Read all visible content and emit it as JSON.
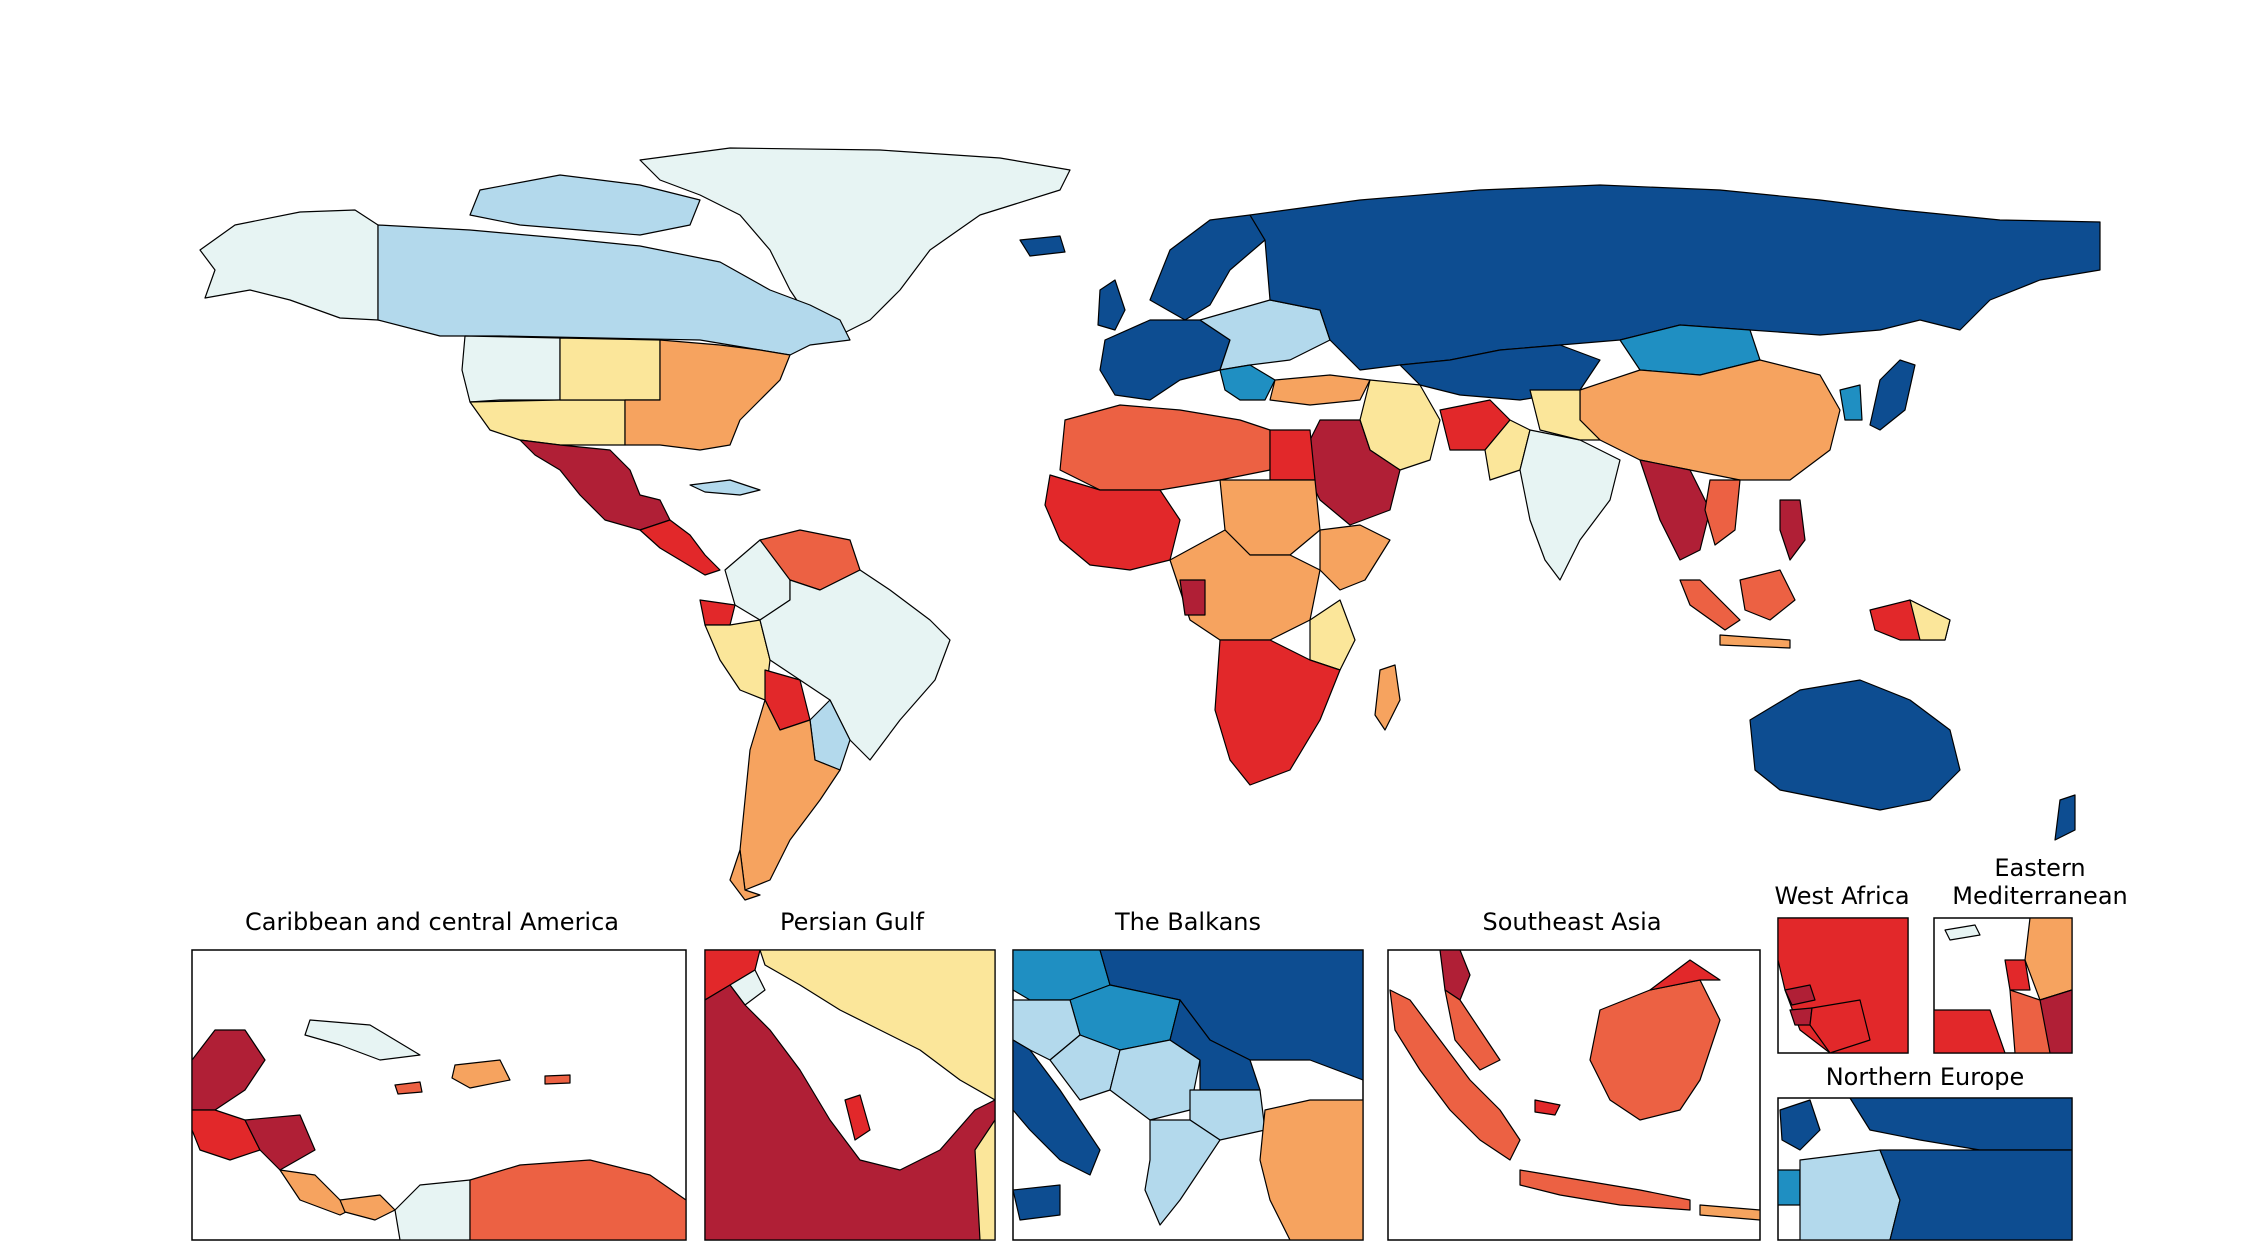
{
  "palette": {
    "c1": "#0d4d91",
    "c2": "#1f8fc2",
    "c3": "#b3d9ec",
    "c4": "#e7f4f3",
    "c5": "#fbe69a",
    "c6": "#f6a35f",
    "c7": "#ec6143",
    "c8": "#e2282a",
    "c9": "#b01f36"
  },
  "insets": {
    "caribbean": {
      "title": "Caribbean and central America"
    },
    "persian_gulf": {
      "title": "Persian Gulf"
    },
    "balkans": {
      "title": "The Balkans"
    },
    "southeast_asia": {
      "title": "Southeast Asia"
    },
    "west_africa": {
      "title": "West Africa"
    },
    "eastern_med": {
      "title_line1": "Eastern",
      "title_line2": "Mediterranean"
    },
    "northern_europe": {
      "title": "Northern Europe"
    }
  }
}
